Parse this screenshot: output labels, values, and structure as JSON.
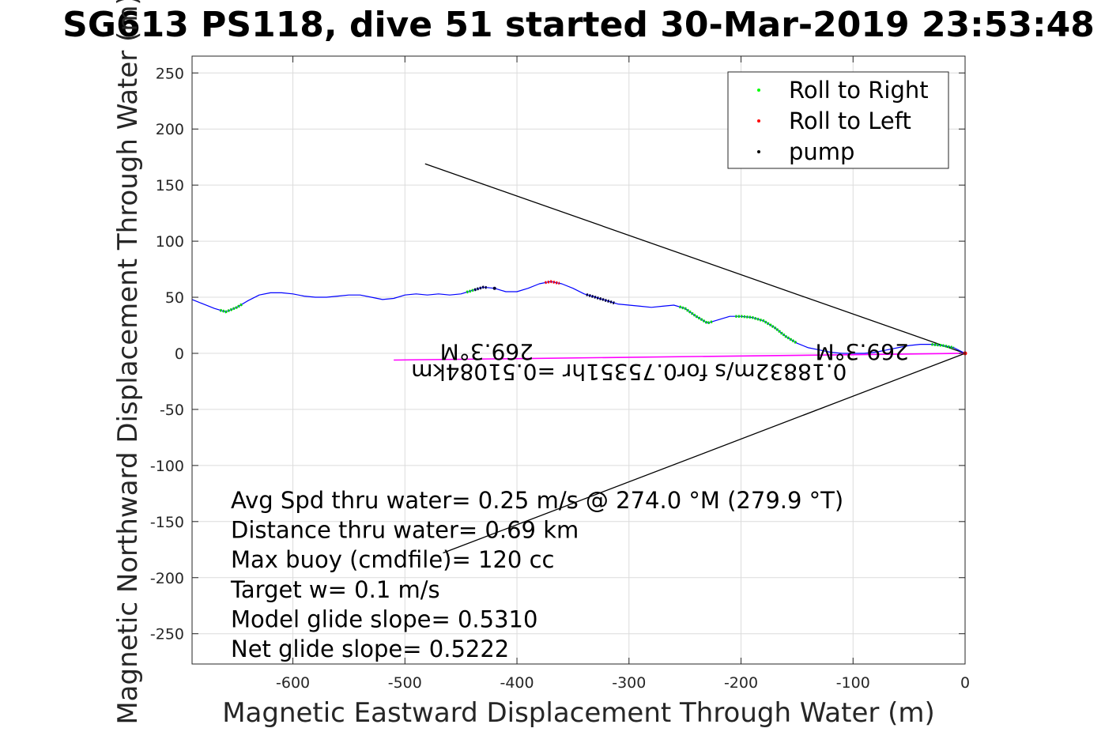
{
  "chart_data": {
    "type": "line",
    "title": "SG613 PS118, dive 51 started 30-Mar-2019 23:53:48",
    "xlabel": "Magnetic Eastward Displacement Through Water (m)",
    "ylabel": "Magnetic Northward Displacement Through Water (m)",
    "xlim": [
      -690,
      0
    ],
    "ylim": [
      -277,
      265
    ],
    "xticks": [
      -600,
      -500,
      -400,
      -300,
      -200,
      -100,
      0
    ],
    "yticks": [
      250,
      200,
      150,
      100,
      50,
      0,
      -50,
      -100,
      -150,
      -200,
      -250
    ],
    "grid": true,
    "legend": {
      "placement": "top-right",
      "entries": [
        {
          "label": "Roll to Right",
          "color": "#00ff00"
        },
        {
          "label": "Roll to Left",
          "color": "#ff0000"
        },
        {
          "label": "pump",
          "color": "#000000"
        }
      ]
    },
    "track": {
      "color": "#0000ff",
      "x": [
        0,
        -10,
        -20,
        -30,
        -40,
        -50,
        -60,
        -70,
        -80,
        -90,
        -100,
        -110,
        -120,
        -130,
        -140,
        -150,
        -160,
        -170,
        -180,
        -190,
        -200,
        -210,
        -220,
        -230,
        -240,
        -250,
        -260,
        -270,
        -280,
        -290,
        -300,
        -310,
        -320,
        -330,
        -340,
        -350,
        -360,
        -370,
        -380,
        -390,
        -400,
        -410,
        -420,
        -430,
        -440,
        -450,
        -460,
        -470,
        -480,
        -490,
        -500,
        -510,
        -520,
        -530,
        -540,
        -550,
        -560,
        -570,
        -580,
        -590,
        -600,
        -610,
        -620,
        -630,
        -640,
        -650,
        -660,
        -670,
        -680,
        -690
      ],
      "y": [
        0,
        5,
        7,
        8,
        8,
        7,
        5,
        3,
        1,
        0,
        0,
        0,
        1,
        3,
        5,
        9,
        15,
        23,
        29,
        32,
        33,
        33,
        30,
        27,
        33,
        40,
        43,
        42,
        41,
        42,
        43,
        44,
        47,
        50,
        53,
        58,
        62,
        64,
        62,
        58,
        55,
        55,
        58,
        59,
        56,
        53,
        52,
        53,
        52,
        53,
        52,
        49,
        48,
        50,
        52,
        52,
        51,
        50,
        50,
        51,
        53,
        54,
        54,
        52,
        47,
        41,
        37,
        40,
        44,
        48
      ]
    },
    "roll_right_segments": [
      [
        -30,
        -10
      ],
      [
        -205,
        -150
      ],
      [
        -255,
        -225
      ],
      [
        -445,
        -435
      ],
      [
        -665,
        -645
      ]
    ],
    "roll_left_segments": [
      [
        -375,
        -362
      ]
    ],
    "pump_segments": [
      [
        -338,
        -312
      ],
      [
        -438,
        -426
      ]
    ],
    "pump_points": [
      [
        -420,
        58
      ]
    ],
    "envelope_lines": [
      {
        "x": [
          0,
          -482
        ],
        "y": [
          0,
          169
        ],
        "color": "#000000"
      },
      {
        "x": [
          0,
          -466
        ],
        "y": [
          0,
          -178
        ],
        "color": "#000000"
      }
    ],
    "heading_line": {
      "x": [
        0,
        -510
      ],
      "y": [
        0,
        -6
      ],
      "color": "#ff00ff"
    },
    "flipped_labels": [
      {
        "text": "269.3°M",
        "x": -92,
        "y": 8
      },
      {
        "text": "269.3°M",
        "x": -427,
        "y": 8
      },
      {
        "text": "0.18832m/s for0.75351hr =0.51084km",
        "x": -300,
        "y": -10
      }
    ],
    "annotations": [
      "Avg Spd thru water=  0.25 m/s @ 274.0 °M (279.9 °T)",
      "Distance thru water=  0.69 km",
      "Max buoy (cmdfile)= 120 cc",
      "Target w= 0.1 m/s",
      "Model glide slope= 0.5310",
      "Net glide slope= 0.5222"
    ]
  }
}
